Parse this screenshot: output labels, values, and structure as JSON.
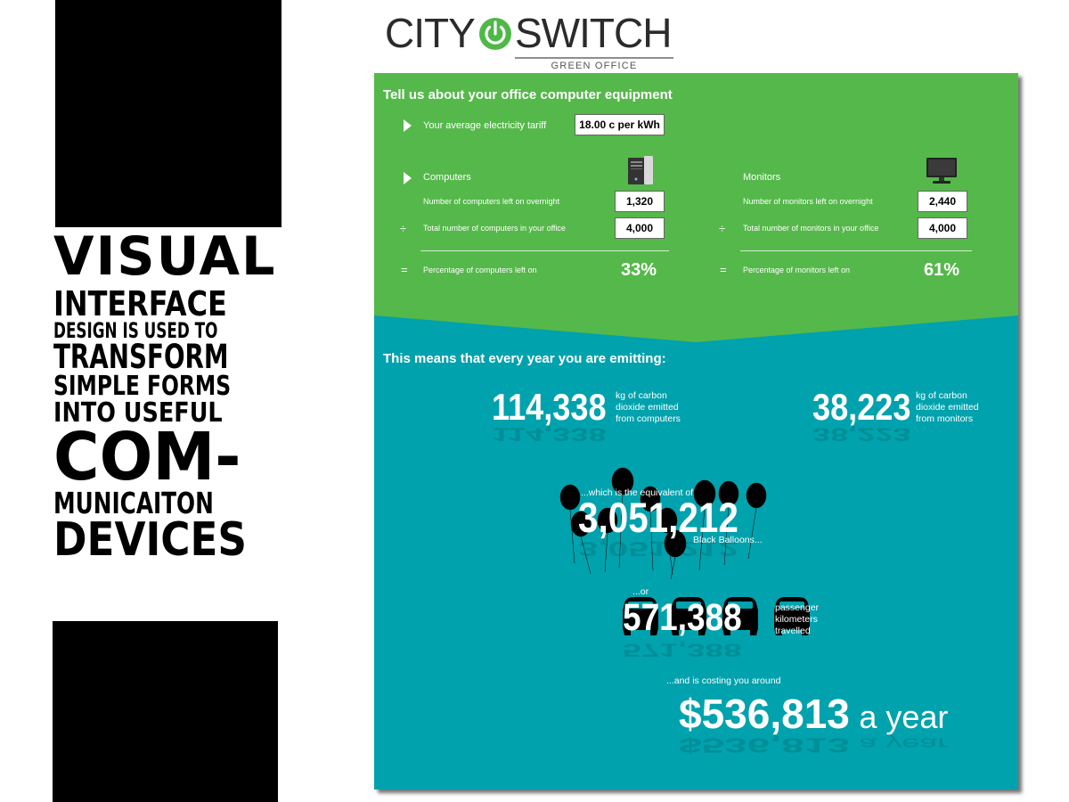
{
  "poster": {
    "lines": [
      "VISUAL",
      "INTERFACE",
      "DESIGN IS USED TO",
      "TRANSFORM",
      "SIMPLE FORMS",
      "INTO USEFUL",
      "COM-",
      "MUNICAITON",
      "DEVICES"
    ]
  },
  "logo": {
    "left": "CITY",
    "right": "SWITCH",
    "subtitle": "GREEN OFFICE"
  },
  "colors": {
    "green": "#55b84a",
    "teal": "#00a2ad"
  },
  "form": {
    "title": "Tell us about your office computer equipment",
    "tariff_label": "Your average electricity tariff",
    "tariff_value": "18.00 c per kWh",
    "computers": {
      "heading": "Computers",
      "icon": "desktop-tower-icon",
      "left_on_label": "Number of computers left on overnight",
      "left_on_value": "1,320",
      "total_label": "Total number of computers in your office",
      "total_value": "4,000",
      "pct_label": "Percentage of computers left on",
      "pct_value": "33%"
    },
    "monitors": {
      "heading": "Monitors",
      "icon": "monitor-icon",
      "left_on_label": "Number of monitors left on overnight",
      "left_on_value": "2,440",
      "total_label": "Total number of monitors in your office",
      "total_value": "4,000",
      "pct_label": "Percentage of monitors left on",
      "pct_value": "61%"
    },
    "ops": {
      "divide": "÷",
      "equals": "="
    }
  },
  "results": {
    "title": "This means that every year you are emitting:",
    "computers_co2": "114,338",
    "computers_desc": [
      "kg of carbon",
      "dioxide emitted",
      "from computers"
    ],
    "monitors_co2": "38,223",
    "monitors_desc": [
      "kg of carbon",
      "dioxide emitted",
      "from monitors"
    ],
    "equiv_label": "...which is the equivalent of",
    "balloons_value": "3,051,212",
    "balloons_label": "Black Balloons...",
    "or_label": "...or",
    "km_value": "571,388",
    "km_desc": [
      "passenger",
      "kilometers",
      "travelled"
    ],
    "cost_label": "...and is costing you around",
    "cost_value": "$536,813",
    "cost_suffix": "a year"
  }
}
